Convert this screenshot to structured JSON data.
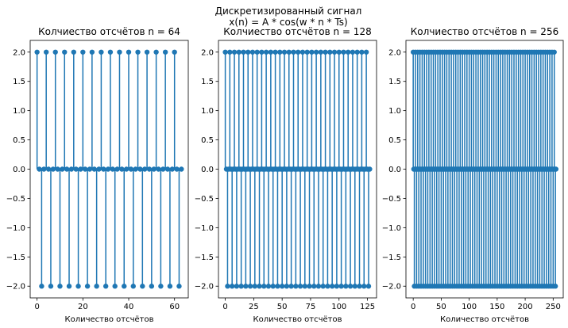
{
  "figure": {
    "suptitle_line1": "Дискретизированный сигнал",
    "suptitle_line2": "x(n) = A * cos(w * n * Ts)"
  },
  "colors": {
    "stem": "#1f77b4",
    "baseline": "#d62728",
    "axes": "#000000"
  },
  "chart_data": [
    {
      "type": "stem",
      "title": "Колчиество отсчётов n = 64",
      "xlabel": "Количество отсчётов",
      "ylabel": "",
      "n": 64,
      "period": 4,
      "values_pattern": [
        2,
        0,
        -2,
        0
      ],
      "xlim": [
        -3,
        66
      ],
      "ylim": [
        -2.2,
        2.2
      ],
      "xticks": [
        0,
        20,
        40,
        60
      ],
      "yticks": [
        -2.0,
        -1.5,
        -1.0,
        -0.5,
        0.0,
        0.5,
        1.0,
        1.5,
        2.0
      ],
      "ytick_labels": [
        "−2.0",
        "−1.5",
        "−1.0",
        "−0.5",
        "0.0",
        "0.5",
        "1.0",
        "1.5",
        "2.0"
      ]
    },
    {
      "type": "stem",
      "title": "Колчиество отсчётов n = 128",
      "xlabel": "Количество отсчётов",
      "ylabel": "",
      "n": 128,
      "period": 4,
      "values_pattern": [
        2,
        0,
        -2,
        0
      ],
      "xlim": [
        -6,
        133
      ],
      "ylim": [
        -2.2,
        2.2
      ],
      "xticks": [
        0,
        25,
        50,
        75,
        100,
        125
      ],
      "yticks": [
        -2.0,
        -1.5,
        -1.0,
        -0.5,
        0.0,
        0.5,
        1.0,
        1.5,
        2.0
      ],
      "ytick_labels": [
        "−2.0",
        "−1.5",
        "−1.0",
        "−0.5",
        "0.0",
        "0.5",
        "1.0",
        "1.5",
        "2.0"
      ]
    },
    {
      "type": "stem",
      "title": "Колчиество отсчётов n = 256",
      "xlabel": "Количество отсчётов",
      "ylabel": "",
      "n": 256,
      "period": 4,
      "values_pattern": [
        2,
        0,
        -2,
        0
      ],
      "xlim": [
        -13,
        268
      ],
      "ylim": [
        -2.2,
        2.2
      ],
      "xticks": [
        0,
        50,
        100,
        150,
        200,
        250
      ],
      "yticks": [
        -2.0,
        -1.5,
        -1.0,
        -0.5,
        0.0,
        0.5,
        1.0,
        1.5,
        2.0
      ],
      "ytick_labels": [
        "−2.0",
        "−1.5",
        "−1.0",
        "−0.5",
        "0.0",
        "0.5",
        "1.0",
        "1.5",
        "2.0"
      ]
    }
  ]
}
